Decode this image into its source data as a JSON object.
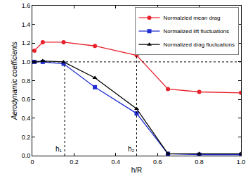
{
  "chart_data": {
    "type": "line",
    "x_label": "h/R",
    "y_label": "Aerodynamic coefficients",
    "x": [
      0.01,
      0.05,
      0.15,
      0.3,
      0.5,
      0.65,
      0.8,
      1.0
    ],
    "series": [
      {
        "name": "Normalzied mean drag",
        "color": "#e8212b",
        "marker": "circle",
        "values": [
          1.12,
          1.21,
          1.21,
          1.17,
          1.07,
          0.71,
          0.68,
          0.67
        ]
      },
      {
        "name": "Normalized lift fluctuations",
        "color": "#1f2dd6",
        "marker": "square",
        "values": [
          1.0,
          1.0,
          0.98,
          0.73,
          0.45,
          0.02,
          0.01,
          0.01
        ]
      },
      {
        "name": "Normalized drag fluctuations",
        "color": "#000000",
        "marker": "triangle-up",
        "values": [
          1.0,
          1.01,
          1.0,
          0.83,
          0.5,
          0.02,
          0.02,
          0.02
        ]
      }
    ],
    "xlim": [
      0,
      1.0
    ],
    "xticks": [
      0,
      0.2,
      0.4,
      0.6,
      0.8,
      {
        "value": 1.0,
        "label": "1.0"
      }
    ],
    "ylim": [
      0,
      1.6
    ],
    "yticks": [
      {
        "value": 0,
        "label": "0.0"
      },
      0.2,
      0.4,
      0.6,
      0.8,
      {
        "value": 1.0,
        "label": "1.0"
      },
      1.2,
      1.4,
      1.6
    ],
    "reference_y": 1.0,
    "annotations": [
      {
        "text": "h₁",
        "x": 0.155,
        "ymax": 1.0
      },
      {
        "text": "h₂",
        "x": 0.5,
        "ymax": 1.07
      }
    ],
    "legend": "upper right",
    "grid": false
  }
}
